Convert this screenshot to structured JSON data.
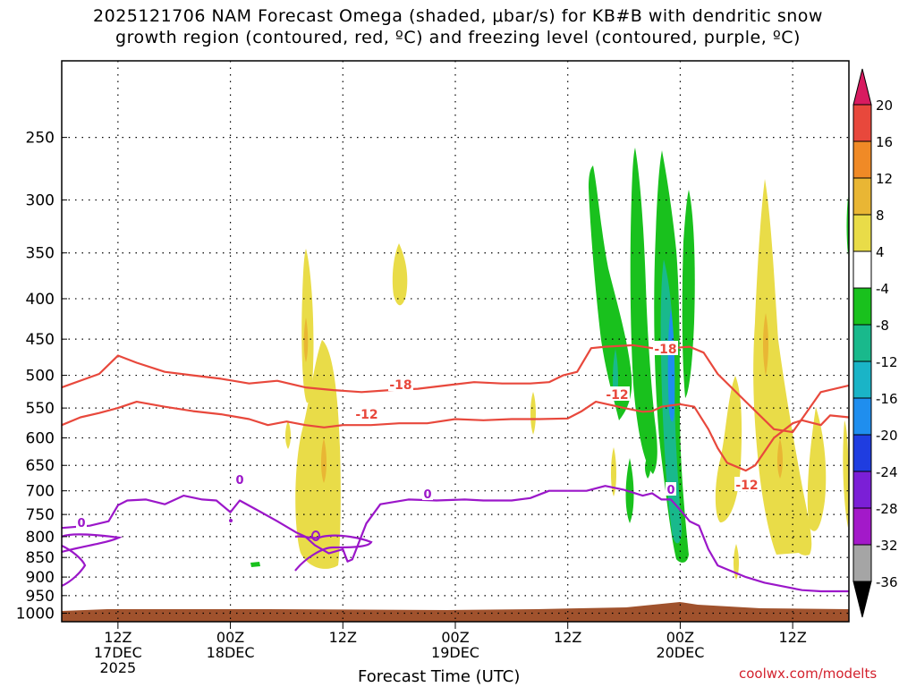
{
  "title_line1": "2025121706 NAM Forecast Omega (shaded, μbar/s) for KB#B with dendritic snow",
  "title_line2": "growth region (contoured, red, ºC) and freezing level (contoured, purple, ºC)",
  "credit": "coolwx.com/modelts",
  "chart_data": {
    "type": "heatmap",
    "title": "2025121706 NAM Forecast Omega (shaded, μbar/s) for KB#B with dendritic snow growth region (contoured, red, ºC) and freezing level (contoured, purple, ºC)",
    "xlabel": "Forecast Time (UTC)",
    "ylabel": "Pressure (mb)",
    "x_range_hours": [
      0,
      84
    ],
    "x_ticks": [
      {
        "hour": 6,
        "lines": [
          "12Z",
          "17DEC",
          "2025"
        ]
      },
      {
        "hour": 18,
        "lines": [
          "00Z",
          "18DEC"
        ]
      },
      {
        "hour": 30,
        "lines": [
          "12Z"
        ]
      },
      {
        "hour": 42,
        "lines": [
          "00Z",
          "19DEC"
        ]
      },
      {
        "hour": 54,
        "lines": [
          "12Z"
        ]
      },
      {
        "hour": 66,
        "lines": [
          "00Z",
          "20DEC"
        ]
      },
      {
        "hour": 78,
        "lines": [
          "12Z"
        ]
      }
    ],
    "y_ticks": [
      250,
      300,
      350,
      400,
      450,
      500,
      550,
      600,
      650,
      700,
      750,
      800,
      850,
      900,
      950,
      1000
    ],
    "y_range_mb": [
      200,
      1025
    ],
    "colorbar": {
      "labels": [
        "20",
        "16",
        "12",
        "8",
        "4",
        "-4",
        "-8",
        "-12",
        "-16",
        "-20",
        "-24",
        "-28",
        "-32",
        "-36"
      ],
      "colors": [
        "#d81b60",
        "#e8483c",
        "#f08a26",
        "#e9b634",
        "#e9dc48",
        "#ffffff",
        "#19c11d",
        "#19b98c",
        "#1ab4c7",
        "#1f8eee",
        "#1f3de0",
        "#7b1fd6",
        "#a319c9",
        "#a5a5a5",
        "#000000"
      ]
    },
    "contour_labels": {
      "red": [
        "-18",
        "-12",
        "-18",
        "-12",
        "-12"
      ],
      "purple": [
        "0",
        "0",
        "0",
        "0"
      ]
    },
    "series": [
      {
        "name": "-18C isotherm (red)",
        "hours": [
          0,
          4,
          6,
          8,
          11,
          14,
          17,
          20,
          23,
          26,
          29,
          32,
          35,
          38,
          41,
          44,
          47,
          50,
          52,
          53.5,
          55,
          56.5,
          58,
          61,
          63,
          65,
          67,
          68.5,
          70,
          73,
          76,
          78,
          81,
          84
        ],
        "pressures": [
          518,
          498,
          472,
          482,
          495,
          500,
          505,
          512,
          508,
          518,
          522,
          525,
          522,
          520,
          515,
          510,
          512,
          512,
          510,
          500,
          495,
          462,
          460,
          458,
          462,
          462,
          460,
          468,
          498,
          540,
          585,
          590,
          525,
          515
        ]
      },
      {
        "name": "-12C isotherm (red)",
        "hours": [
          0,
          2,
          4,
          6,
          8,
          11,
          14,
          17,
          20,
          22,
          24,
          26,
          28,
          30,
          33,
          36,
          39,
          42,
          45,
          48,
          51,
          54,
          55.5,
          57,
          58.5,
          60,
          62,
          63,
          64,
          66,
          67.5,
          69,
          70,
          71,
          73,
          74,
          76,
          78,
          79,
          81,
          82,
          84
        ],
        "pressures": [
          578,
          565,
          558,
          550,
          540,
          548,
          555,
          560,
          568,
          578,
          572,
          578,
          582,
          578,
          578,
          575,
          575,
          568,
          570,
          568,
          568,
          567,
          555,
          540,
          545,
          550,
          556,
          555,
          548,
          544,
          548,
          585,
          618,
          645,
          660,
          650,
          600,
          575,
          570,
          578,
          562,
          565
        ]
      },
      {
        "name": "0C isotherm (purple)",
        "hours": [
          0,
          3,
          5,
          6,
          7,
          9,
          11,
          13,
          15,
          16.5,
          18,
          19,
          21,
          23,
          25,
          26,
          27,
          28.5,
          30,
          30.5,
          31,
          32.5,
          34,
          37,
          40,
          43,
          45,
          48,
          50,
          52,
          54,
          56,
          58,
          60,
          62,
          63,
          64,
          65,
          66,
          67,
          68,
          69,
          70,
          71,
          73,
          75,
          77,
          79,
          81,
          84
        ],
        "pressures": [
          780,
          775,
          765,
          730,
          720,
          718,
          728,
          710,
          718,
          720,
          745,
          720,
          742,
          765,
          790,
          800,
          820,
          840,
          830,
          860,
          855,
          770,
          728,
          718,
          720,
          718,
          720,
          720,
          715,
          700,
          700,
          700,
          690,
          698,
          710,
          705,
          718,
          718,
          740,
          765,
          775,
          830,
          870,
          880,
          900,
          915,
          925,
          935,
          938,
          938
        ]
      }
    ]
  }
}
